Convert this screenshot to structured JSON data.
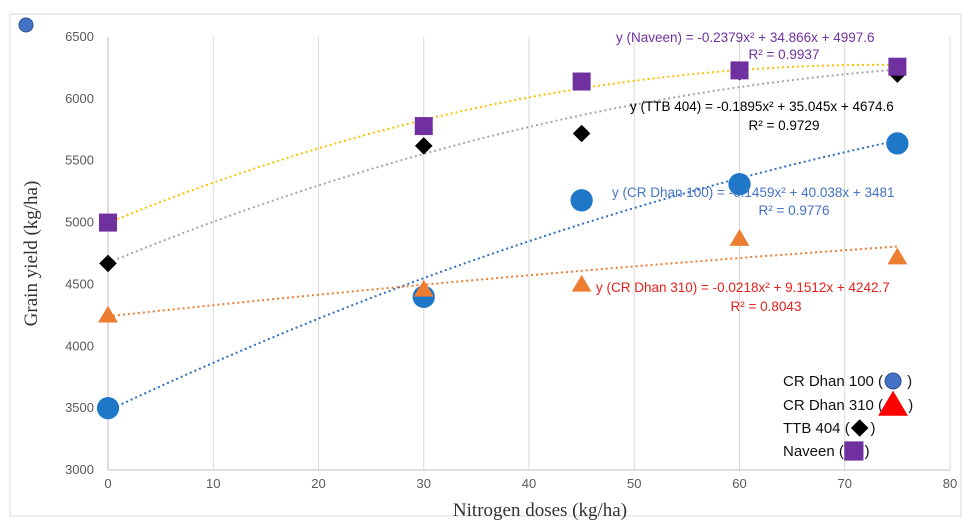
{
  "chart_data": {
    "type": "scatter",
    "title": "",
    "xlabel": "Nitrogen doses (kg/ha)",
    "ylabel": "Grain yield (kg/ha)",
    "xlim": [
      0,
      80
    ],
    "ylim": [
      3000,
      6500
    ],
    "x_ticks": [
      "0",
      "10",
      "20",
      "30",
      "40",
      "50",
      "60",
      "70",
      "80"
    ],
    "y_ticks": [
      "3000",
      "3500",
      "4000",
      "4500",
      "5000",
      "5500",
      "6000",
      "6500"
    ],
    "grid": "vertical",
    "legend_position": "bottom-right",
    "series": [
      {
        "name": "CR Dhan 100",
        "legend_label": "CR Dhan 100 (",
        "legend_close": ")",
        "marker": "circle",
        "color": "#1f77c8",
        "trend_color": "#2e6fbf",
        "x": [
          0,
          30,
          45,
          60,
          75
        ],
        "y": [
          3500,
          4400,
          5180,
          5310,
          5640
        ],
        "trend": {
          "a": -0.1459,
          "b": 40.038,
          "c": 3481
        },
        "equation": "y (CR Dhan 100) = -0.1459x² + 40.038x + 3481",
        "r2": "R² = 0.9776",
        "label_color": "#4472c4"
      },
      {
        "name": "CR Dhan 310",
        "legend_label": "CR Dhan 310 (",
        "legend_close": ")",
        "marker": "triangle",
        "color": "#ed7d31",
        "legend_marker_color": "#ff0000",
        "trend_color": "#ed7d31",
        "x": [
          0,
          30,
          45,
          60,
          75
        ],
        "y": [
          4250,
          4460,
          4500,
          4870,
          4720
        ],
        "trend": {
          "a": -0.0218,
          "b": 9.1512,
          "c": 4242.7
        },
        "equation": "y (CR Dhan 310) = -0.0218x² + 9.1512x + 4242.7",
        "r2": "R² = 0.8043",
        "label_color": "#e8201c"
      },
      {
        "name": "TTB 404",
        "legend_label": "TTB 404  (",
        "legend_close": ")",
        "marker": "diamond",
        "color": "#000000",
        "trend_color": "#a6a6a6",
        "x": [
          0,
          30,
          45,
          60,
          75
        ],
        "y": [
          4670,
          5620,
          5720,
          6220,
          6200
        ],
        "trend": {
          "a": -0.1895,
          "b": 35.045,
          "c": 4674.6
        },
        "equation": "y (TTB 404) = -0.1895x² + 35.045x + 4674.6",
        "r2": "R² = 0.9729",
        "label_color": "#000000"
      },
      {
        "name": "Naveen",
        "legend_label": "Naveen  (",
        "legend_close": ")",
        "marker": "square",
        "color": "#7030a0",
        "trend_color": "#ffc000",
        "x": [
          0,
          30,
          45,
          60,
          75
        ],
        "y": [
          5000,
          5780,
          6140,
          6230,
          6260
        ],
        "trend": {
          "a": -0.2379,
          "b": 34.866,
          "c": 4997.6
        },
        "equation": "y (Naveen) = -0.2379x² + 34.866x + 4997.6",
        "r2": "R² = 0.9937",
        "label_color": "#7030a0"
      }
    ]
  },
  "decor": {
    "corner_dot_color": "#4472c4"
  }
}
